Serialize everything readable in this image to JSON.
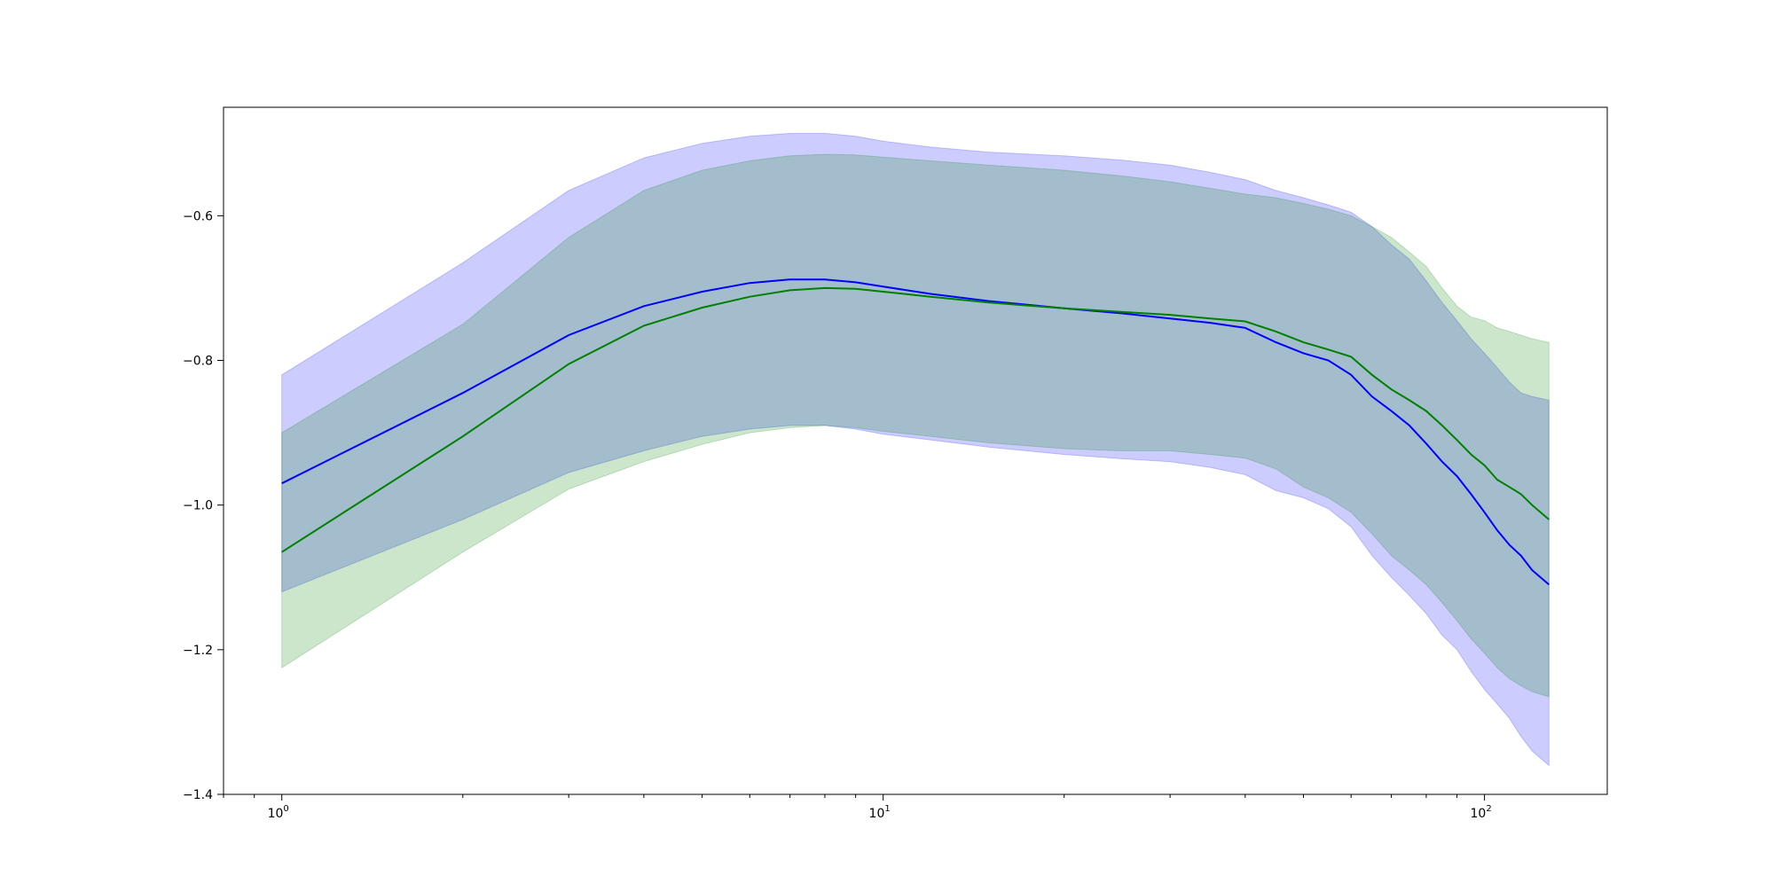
{
  "chart_data": {
    "type": "area",
    "title": "",
    "xlabel": "",
    "ylabel": "",
    "x_scale": "log",
    "xlim": [
      0.8,
      160
    ],
    "ylim": [
      -1.4,
      -0.45
    ],
    "grid": false,
    "x_ticks": [
      {
        "value": 1,
        "base": "10",
        "exp": "0"
      },
      {
        "value": 10,
        "base": "10",
        "exp": "1"
      },
      {
        "value": 100,
        "base": "10",
        "exp": "2"
      }
    ],
    "y_ticks": [
      {
        "value": -0.6,
        "label": "−0.6"
      },
      {
        "value": -0.8,
        "label": "−0.8"
      },
      {
        "value": -1.0,
        "label": "−1.0"
      },
      {
        "value": -1.2,
        "label": "−1.2"
      },
      {
        "value": -1.4,
        "label": "−1.4"
      }
    ],
    "series": [
      {
        "color": "#0000ff",
        "band_color": "#0000ff",
        "x": [
          1,
          2,
          3,
          4,
          5,
          6,
          7,
          8,
          9,
          10,
          12,
          15,
          20,
          25,
          30,
          35,
          40,
          45,
          50,
          55,
          60,
          65,
          70,
          75,
          80,
          85,
          90,
          95,
          100,
          105,
          110,
          115,
          120,
          128
        ],
        "mean": [
          -0.97,
          -0.845,
          -0.765,
          -0.725,
          -0.705,
          -0.693,
          -0.688,
          -0.688,
          -0.692,
          -0.698,
          -0.708,
          -0.718,
          -0.728,
          -0.735,
          -0.742,
          -0.748,
          -0.755,
          -0.775,
          -0.79,
          -0.8,
          -0.82,
          -0.85,
          -0.87,
          -0.89,
          -0.915,
          -0.94,
          -0.96,
          -0.985,
          -1.01,
          -1.035,
          -1.055,
          -1.07,
          -1.09,
          -1.11
        ],
        "upper": [
          -0.82,
          -0.665,
          -0.565,
          -0.52,
          -0.5,
          -0.49,
          -0.486,
          -0.486,
          -0.49,
          -0.497,
          -0.505,
          -0.512,
          -0.517,
          -0.523,
          -0.53,
          -0.54,
          -0.55,
          -0.565,
          -0.575,
          -0.585,
          -0.595,
          -0.615,
          -0.64,
          -0.66,
          -0.69,
          -0.72,
          -0.745,
          -0.77,
          -0.79,
          -0.81,
          -0.83,
          -0.845,
          -0.85,
          -0.855
        ],
        "lower": [
          -1.12,
          -1.02,
          -0.955,
          -0.925,
          -0.905,
          -0.895,
          -0.89,
          -0.89,
          -0.895,
          -0.902,
          -0.91,
          -0.92,
          -0.93,
          -0.936,
          -0.94,
          -0.948,
          -0.958,
          -0.98,
          -0.99,
          -1.005,
          -1.03,
          -1.07,
          -1.1,
          -1.125,
          -1.15,
          -1.18,
          -1.2,
          -1.23,
          -1.255,
          -1.275,
          -1.295,
          -1.32,
          -1.34,
          -1.36
        ]
      },
      {
        "color": "#008000",
        "band_color": "#008000",
        "x": [
          1,
          2,
          3,
          4,
          5,
          6,
          7,
          8,
          9,
          10,
          12,
          15,
          20,
          25,
          30,
          35,
          40,
          45,
          50,
          55,
          60,
          65,
          70,
          75,
          80,
          85,
          90,
          95,
          100,
          105,
          110,
          115,
          120,
          128
        ],
        "mean": [
          -1.065,
          -0.905,
          -0.805,
          -0.752,
          -0.727,
          -0.712,
          -0.703,
          -0.7,
          -0.701,
          -0.705,
          -0.712,
          -0.72,
          -0.728,
          -0.733,
          -0.737,
          -0.742,
          -0.746,
          -0.76,
          -0.775,
          -0.785,
          -0.795,
          -0.82,
          -0.84,
          -0.855,
          -0.87,
          -0.89,
          -0.91,
          -0.93,
          -0.945,
          -0.965,
          -0.975,
          -0.985,
          -1.0,
          -1.02
        ],
        "upper": [
          -0.9,
          -0.75,
          -0.63,
          -0.565,
          -0.537,
          -0.524,
          -0.517,
          -0.515,
          -0.516,
          -0.519,
          -0.524,
          -0.53,
          -0.537,
          -0.545,
          -0.553,
          -0.562,
          -0.57,
          -0.575,
          -0.583,
          -0.591,
          -0.6,
          -0.615,
          -0.63,
          -0.65,
          -0.67,
          -0.7,
          -0.725,
          -0.74,
          -0.745,
          -0.755,
          -0.76,
          -0.765,
          -0.77,
          -0.775
        ],
        "lower": [
          -1.225,
          -1.065,
          -0.978,
          -0.94,
          -0.916,
          -0.9,
          -0.893,
          -0.89,
          -0.893,
          -0.898,
          -0.905,
          -0.914,
          -0.922,
          -0.925,
          -0.925,
          -0.93,
          -0.935,
          -0.95,
          -0.975,
          -0.99,
          -1.01,
          -1.04,
          -1.07,
          -1.09,
          -1.11,
          -1.135,
          -1.16,
          -1.185,
          -1.205,
          -1.225,
          -1.24,
          -1.25,
          -1.258,
          -1.265
        ]
      }
    ]
  }
}
